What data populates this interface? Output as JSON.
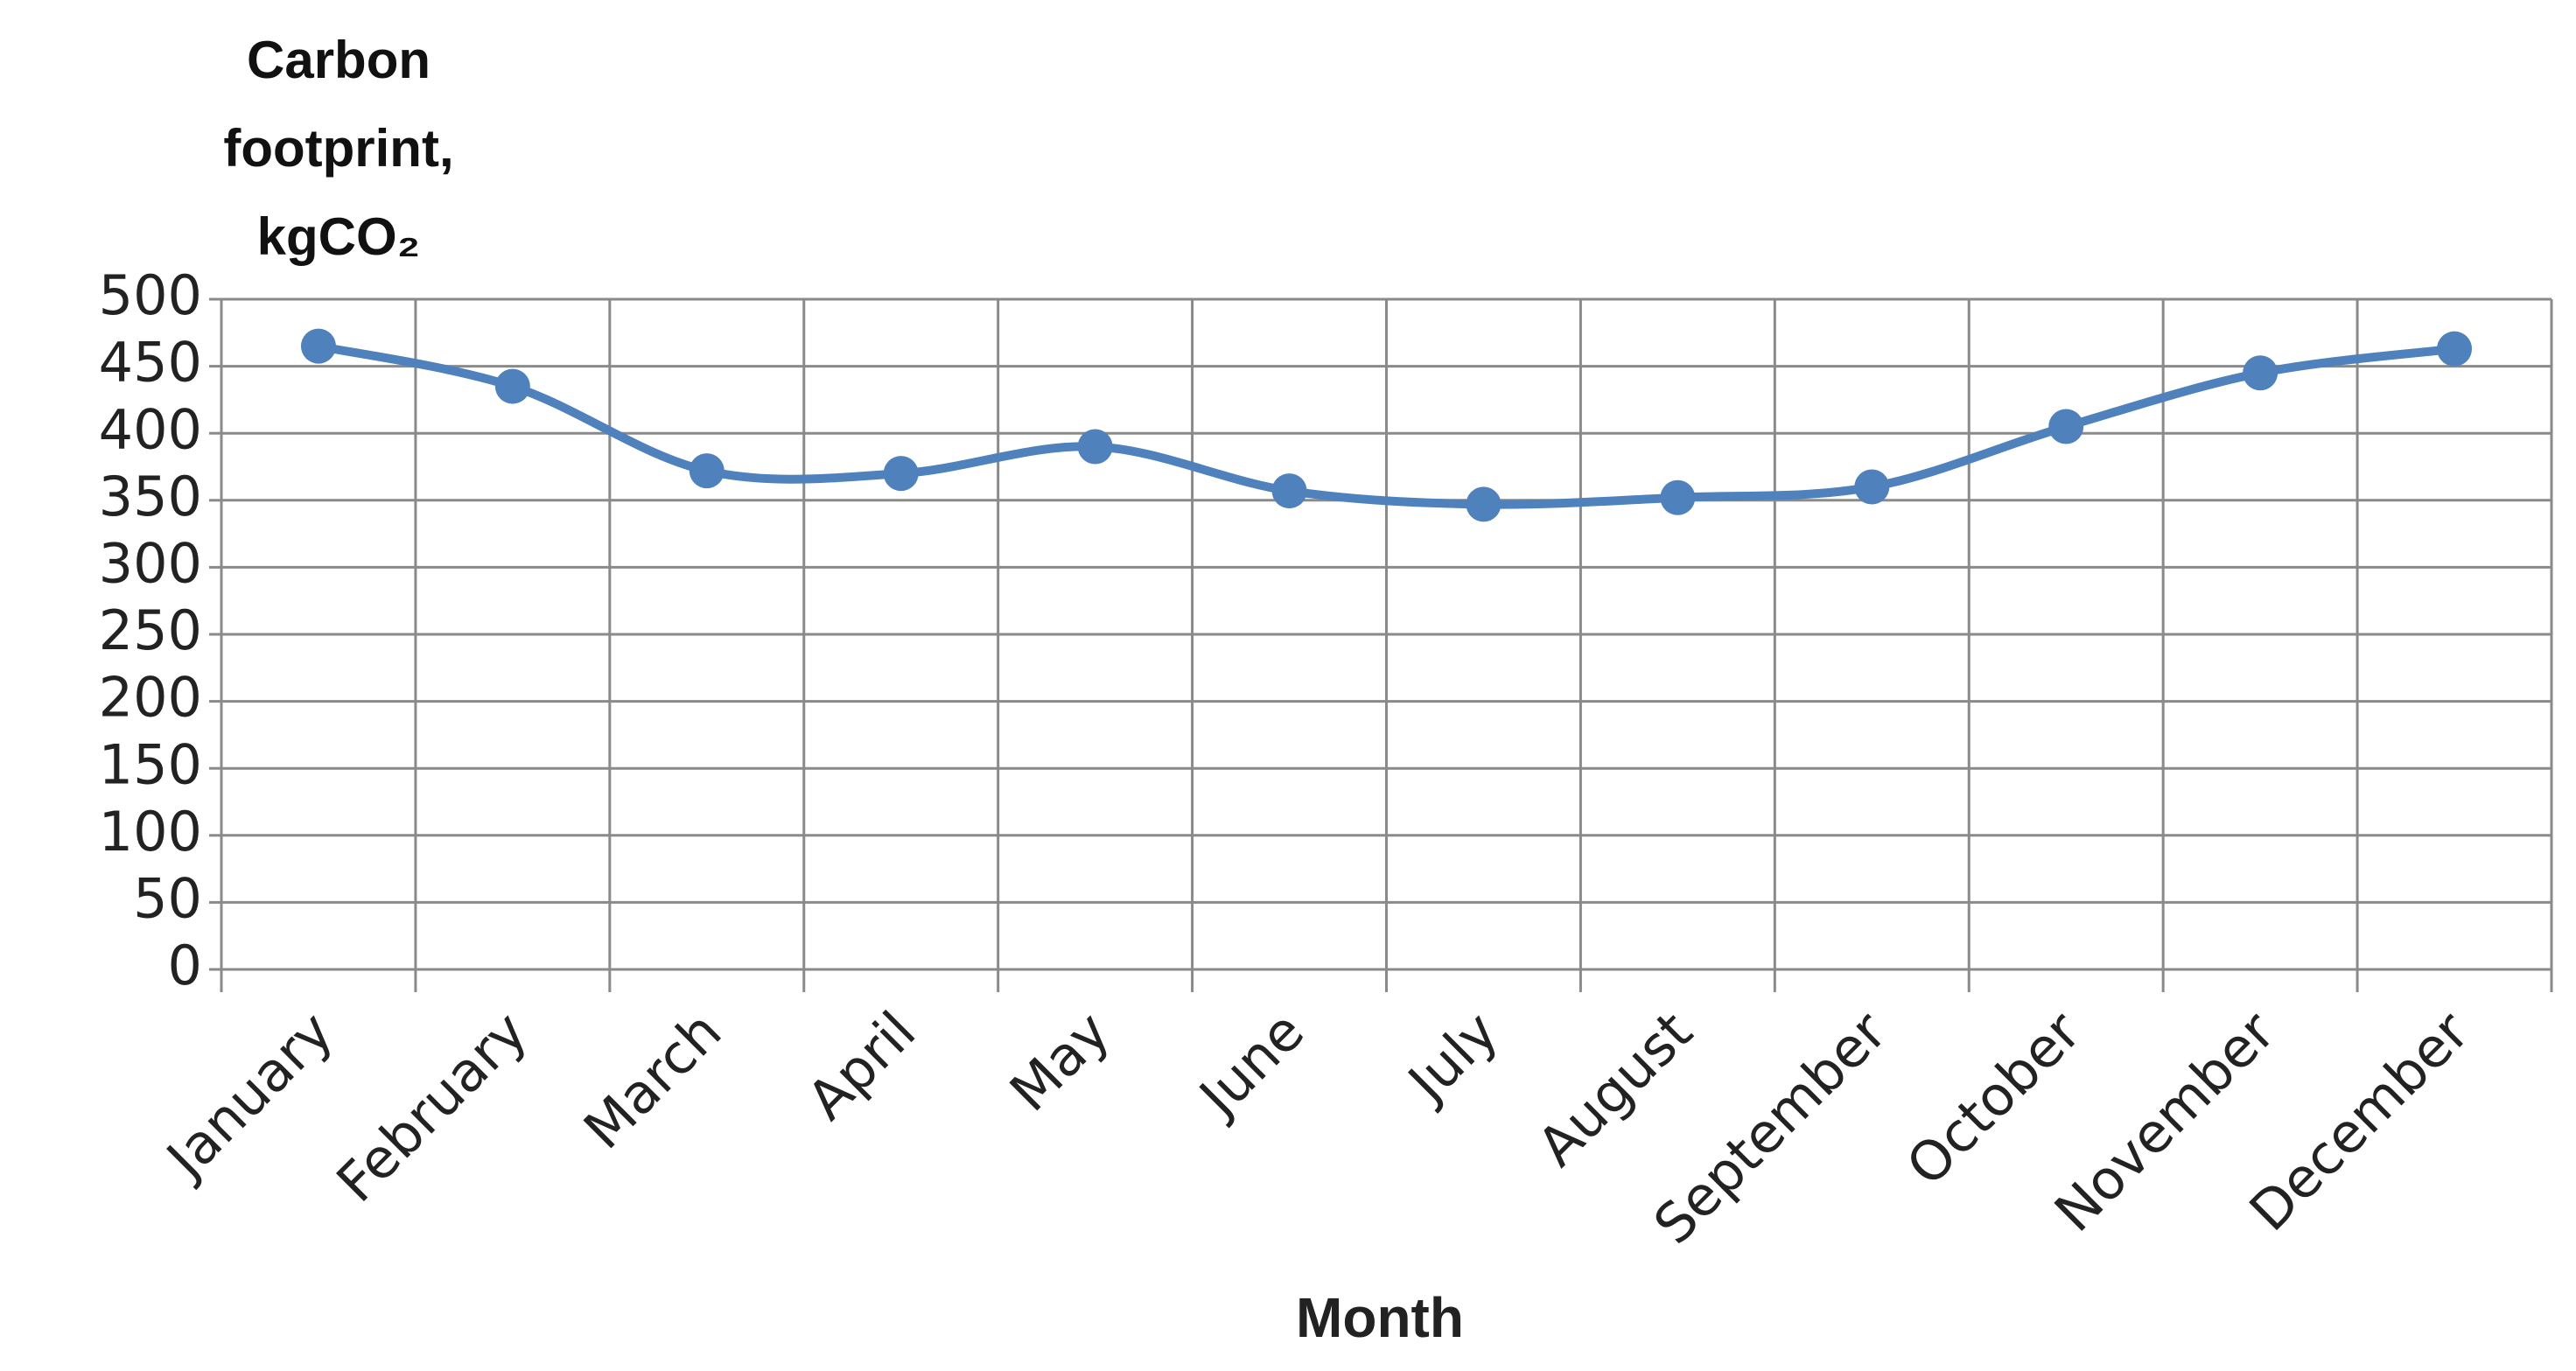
{
  "chart_data": {
    "type": "line",
    "y_label": "Carbon footprint, kgCO₂",
    "x_label": "Month",
    "categories": [
      "January",
      "February",
      "March",
      "April",
      "May",
      "June",
      "July",
      "August",
      "September",
      "October",
      "November",
      "December"
    ],
    "values": [
      465,
      435,
      372,
      370,
      390,
      357,
      347,
      352,
      360,
      405,
      445,
      463
    ],
    "color": "#4f81bd",
    "ylim": [
      0,
      500
    ],
    "yticks": [
      0,
      50,
      100,
      150,
      200,
      250,
      300,
      350,
      400,
      450,
      500
    ],
    "grid": true,
    "smooth": true
  }
}
